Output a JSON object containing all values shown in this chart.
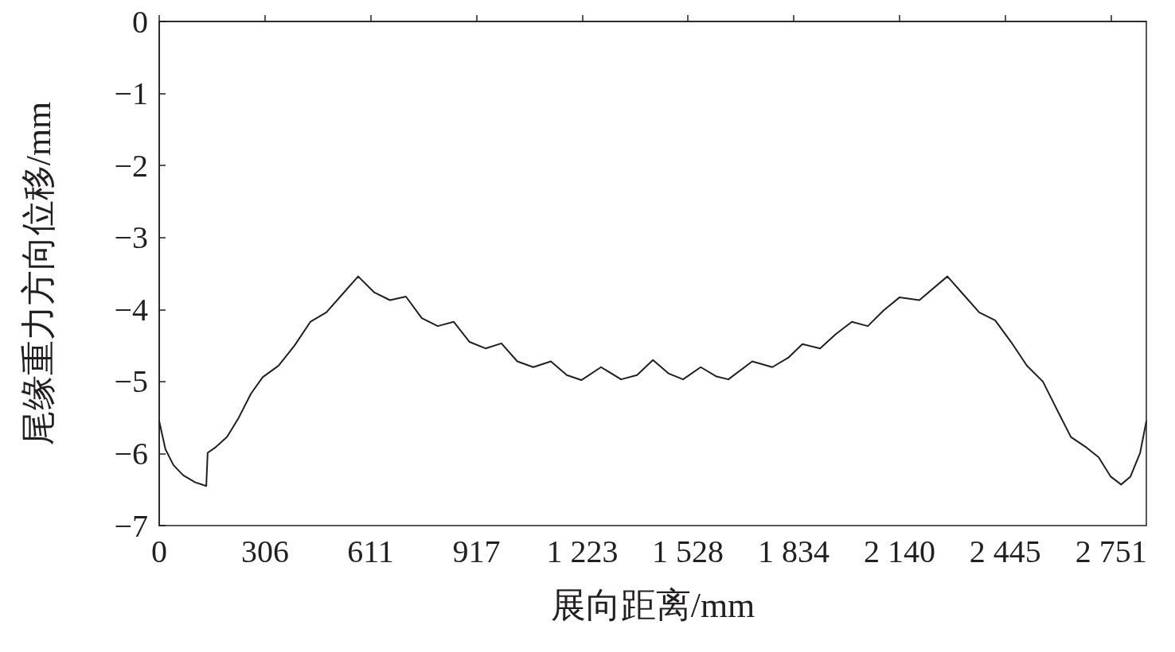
{
  "chart_data": {
    "type": "line",
    "xlabel": "展向距离/mm",
    "ylabel": "尾缘重力方向位移/mm",
    "xlim": [
      0,
      2853
    ],
    "ylim": [
      -7,
      0
    ],
    "xticks": [
      0,
      306,
      611,
      917,
      {
        "value": 1223,
        "label": "1 223"
      },
      {
        "value": 1528,
        "label": "1 528"
      },
      {
        "value": 1834,
        "label": "1 834"
      },
      {
        "value": 2140,
        "label": "2 140"
      },
      {
        "value": 2445,
        "label": "2 445"
      },
      {
        "value": 2751,
        "label": "2 751"
      }
    ],
    "yticks": [
      -7,
      -6,
      -5,
      -4,
      -3,
      -2,
      -1,
      0
    ],
    "grid": false,
    "marker": "none",
    "line_style": "solid",
    "series": [
      {
        "color": "#231f20",
        "x": [
          0,
          18,
          41,
          69,
          104,
          136,
          140,
          161,
          196,
          230,
          265,
          299,
          345,
          391,
          437,
          483,
          529,
          575,
          621,
          667,
          713,
          759,
          805,
          851,
          897,
          943,
          989,
          1035,
          1081,
          1132,
          1178,
          1220,
          1277,
          1335,
          1381,
          1427,
          1473,
          1514,
          1565,
          1611,
          1645,
          1714,
          1772,
          1818,
          1859,
          1910,
          1956,
          2002,
          2048,
          2094,
          2140,
          2197,
          2278,
          2324,
          2370,
          2416,
          2462,
          2508,
          2554,
          2600,
          2635,
          2681,
          2715,
          2750,
          2780,
          2807,
          2835,
          2853
        ],
        "values": [
          -5.55,
          -5.94,
          -6.16,
          -6.3,
          -6.4,
          -6.45,
          -5.99,
          -5.92,
          -5.77,
          -5.5,
          -5.17,
          -4.94,
          -4.78,
          -4.5,
          -4.17,
          -4.04,
          -3.79,
          -3.54,
          -3.76,
          -3.87,
          -3.82,
          -4.12,
          -4.23,
          -4.17,
          -4.45,
          -4.54,
          -4.47,
          -4.72,
          -4.8,
          -4.72,
          -4.91,
          -4.98,
          -4.8,
          -4.97,
          -4.91,
          -4.7,
          -4.89,
          -4.97,
          -4.8,
          -4.93,
          -4.97,
          -4.72,
          -4.8,
          -4.67,
          -4.48,
          -4.54,
          -4.34,
          -4.17,
          -4.23,
          -4.01,
          -3.83,
          -3.87,
          -3.54,
          -3.79,
          -4.04,
          -4.15,
          -4.45,
          -4.78,
          -5.0,
          -5.44,
          -5.77,
          -5.92,
          -6.05,
          -6.32,
          -6.43,
          -6.32,
          -5.99,
          -5.55
        ]
      }
    ]
  }
}
